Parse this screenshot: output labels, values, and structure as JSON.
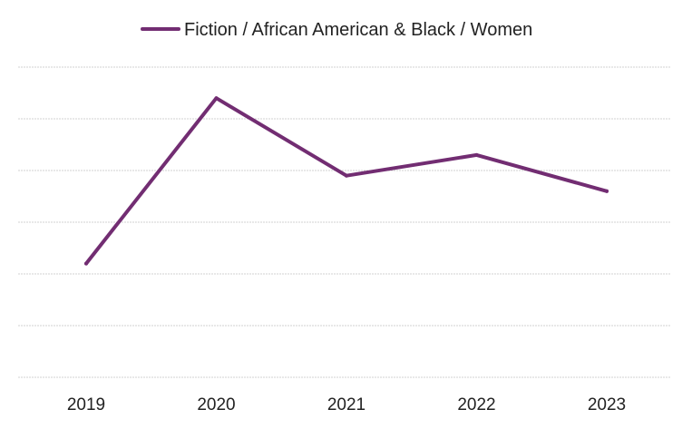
{
  "chart_data": {
    "type": "line",
    "categories": [
      "2019",
      "2020",
      "2021",
      "2022",
      "2023"
    ],
    "series": [
      {
        "name": "Fiction / African American & Black / Women",
        "values": [
          2.2,
          5.4,
          3.9,
          4.3,
          3.6
        ]
      }
    ],
    "ylim": [
      0,
      6
    ],
    "grid": true,
    "legend": "top-center",
    "y_tick_labels_shown": false,
    "series_color": "#722d72"
  }
}
